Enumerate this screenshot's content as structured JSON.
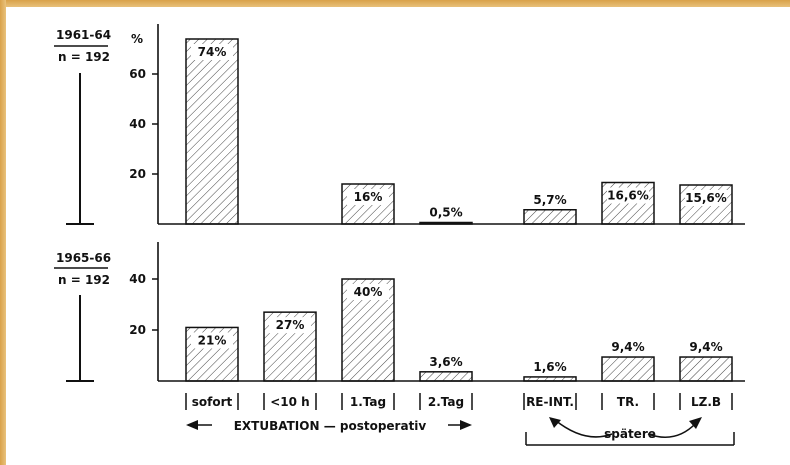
{
  "chart_data": [
    {
      "type": "bar",
      "period": "1961-64",
      "n": "n = 192",
      "y_unit": "%",
      "yticks": [
        "60",
        "40",
        "20"
      ],
      "ylim": [
        0,
        80
      ],
      "categories": [
        "sofort",
        "<10 h",
        "1.Tag",
        "2.Tag",
        "RE-INT.",
        "TR.",
        "LZ.B"
      ],
      "values": [
        74,
        0,
        16,
        0.5,
        5.7,
        16.6,
        15.6
      ],
      "labels": [
        "74%",
        "",
        "16%",
        "0,5%",
        "5,7%",
        "16,6%",
        "15,6%"
      ]
    },
    {
      "type": "bar",
      "period": "1965-66",
      "n": "n = 192",
      "yticks": [
        "40",
        "20"
      ],
      "ylim": [
        0,
        80
      ],
      "categories": [
        "sofort",
        "<10 h",
        "1.Tag",
        "2.Tag",
        "RE-INT.",
        "TR.",
        "LZ.B"
      ],
      "values": [
        21,
        27,
        40,
        3.6,
        1.6,
        9.4,
        9.4
      ],
      "labels": [
        "21%",
        "27%",
        "40%",
        "3,6%",
        "1,6%",
        "9,4%",
        "9,4%"
      ]
    }
  ],
  "x_categories": [
    "sofort",
    "<10 h",
    "1.Tag",
    "2.Tag",
    "RE-INT.",
    "TR.",
    "LZ.B"
  ],
  "group_extubation": "EXTUBATION — postoperativ",
  "group_later": "spätere"
}
